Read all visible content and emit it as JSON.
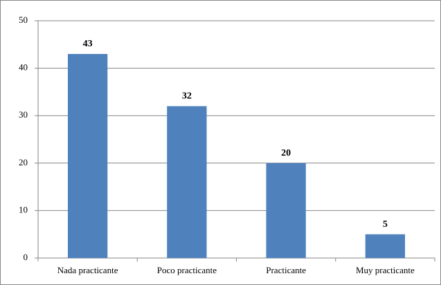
{
  "chart_data": {
    "type": "bar",
    "categories": [
      "Nada practicante",
      "Poco practicante",
      "Practicante",
      "Muy practicante"
    ],
    "values": [
      43,
      32,
      20,
      5
    ],
    "color": "#4f81bd",
    "ylim": [
      0,
      50
    ],
    "yticks": [
      0,
      10,
      20,
      30,
      40,
      50
    ],
    "grid": true
  }
}
